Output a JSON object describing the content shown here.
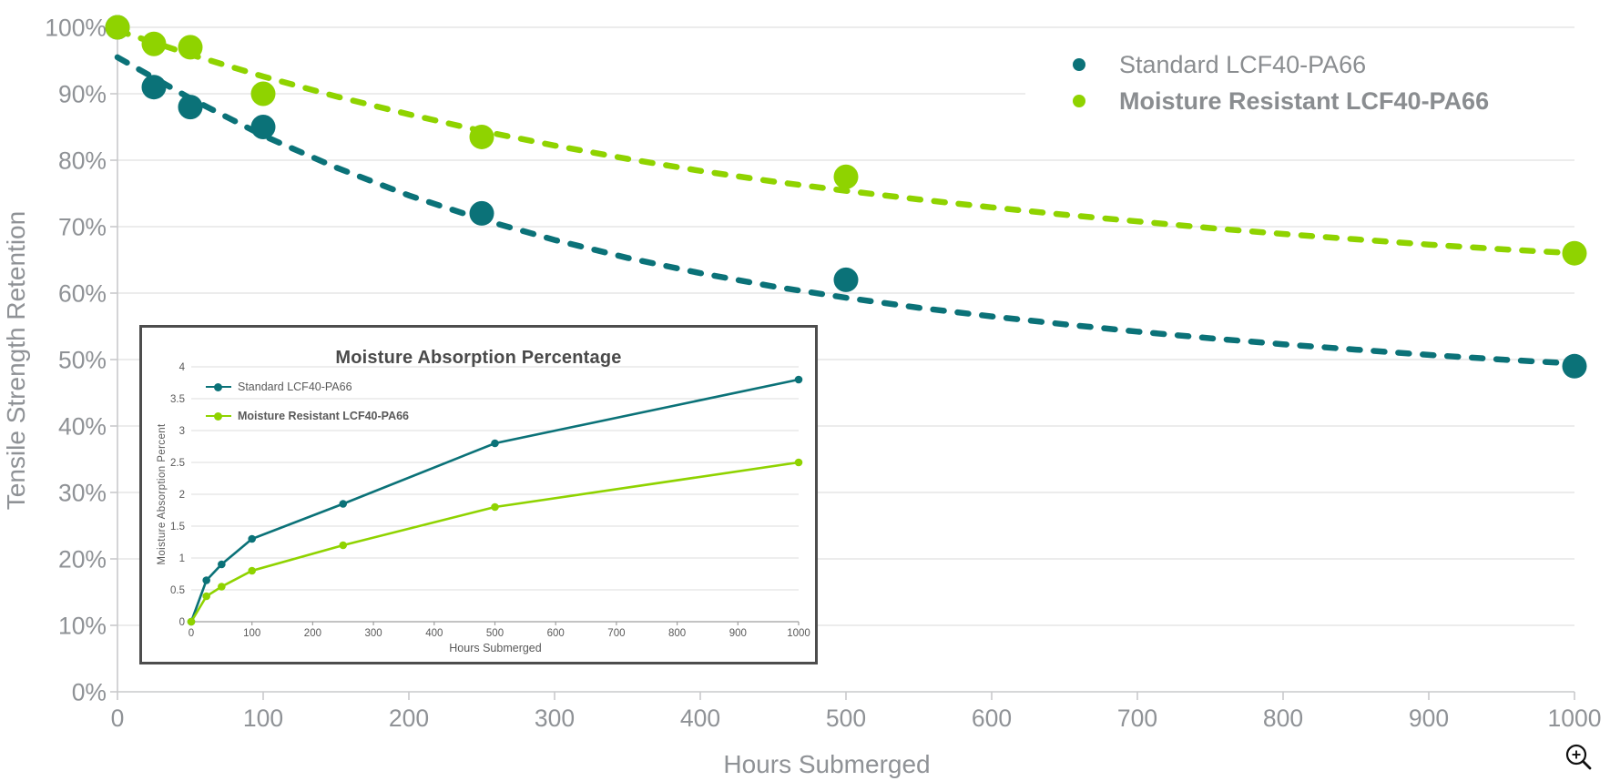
{
  "colors": {
    "standard": "#0b7278",
    "moisture_resistant": "#8fd300",
    "axis_text": "#8f9296",
    "grid": "#e6e6e6",
    "axis_line": "#c9cacb",
    "legend_text": "#8a8d90",
    "inset_text": "#595959",
    "inset_border": "#4d4d4d",
    "zoom_icon": "#111111"
  },
  "icons": {
    "zoom_in": "magnifier-plus-icon"
  },
  "chart_data": [
    {
      "id": "tensile-retention",
      "type": "scatter",
      "title": "",
      "xlabel": "Hours Submerged",
      "ylabel": "Tensile Strength Retention",
      "xlim": [
        0,
        1000
      ],
      "ylim": [
        0,
        100
      ],
      "xticks": [
        0,
        100,
        200,
        300,
        400,
        500,
        600,
        700,
        800,
        900,
        1000
      ],
      "yticks": [
        "0%",
        "10%",
        "20%",
        "30%",
        "40%",
        "50%",
        "60%",
        "70%",
        "80%",
        "90%",
        "100%"
      ],
      "grid": "horizontal",
      "legend_position": "top-right",
      "series": [
        {
          "name": "Standard LCF40-PA66",
          "color_key": "standard",
          "bold": false,
          "marker": "circle",
          "trend_style": "dashed",
          "points": [
            [
              0,
              100
            ],
            [
              25,
              91
            ],
            [
              50,
              88
            ],
            [
              100,
              85
            ],
            [
              250,
              72
            ],
            [
              500,
              62
            ],
            [
              1000,
              49
            ]
          ],
          "trend": [
            [
              0,
              95.5
            ],
            [
              50,
              89.3
            ],
            [
              100,
              83.7
            ],
            [
              150,
              78.9
            ],
            [
              200,
              74.7
            ],
            [
              250,
              71.1
            ],
            [
              300,
              68
            ],
            [
              350,
              65.3
            ],
            [
              400,
              63
            ],
            [
              450,
              61
            ],
            [
              500,
              59.3
            ],
            [
              550,
              57.8
            ],
            [
              600,
              56.5
            ],
            [
              650,
              55.3
            ],
            [
              700,
              54.2
            ],
            [
              750,
              53.2
            ],
            [
              800,
              52.3
            ],
            [
              850,
              51.5
            ],
            [
              900,
              50.7
            ],
            [
              950,
              50
            ],
            [
              1000,
              49.4
            ]
          ]
        },
        {
          "name": "Moisture Resistant LCF40-PA66",
          "color_key": "moisture_resistant",
          "bold": true,
          "marker": "circle",
          "trend_style": "dashed",
          "points": [
            [
              0,
              100
            ],
            [
              25,
              97.5
            ],
            [
              50,
              97
            ],
            [
              100,
              90
            ],
            [
              250,
              83.5
            ],
            [
              500,
              77.5
            ],
            [
              1000,
              66
            ]
          ],
          "trend": [
            [
              0,
              99.5
            ],
            [
              50,
              95.9
            ],
            [
              100,
              92.6
            ],
            [
              150,
              89.6
            ],
            [
              200,
              86.9
            ],
            [
              250,
              84.4
            ],
            [
              300,
              82.2
            ],
            [
              350,
              80.2
            ],
            [
              400,
              78.4
            ],
            [
              450,
              76.8
            ],
            [
              500,
              75.4
            ],
            [
              550,
              74.1
            ],
            [
              600,
              72.9
            ],
            [
              650,
              71.8
            ],
            [
              700,
              70.8
            ],
            [
              750,
              69.8
            ],
            [
              800,
              68.9
            ],
            [
              850,
              68.1
            ],
            [
              900,
              67.3
            ],
            [
              950,
              66.6
            ],
            [
              1000,
              66
            ]
          ]
        }
      ]
    },
    {
      "id": "moisture-absorption",
      "type": "line",
      "title": "Moisture Absorption Percentage",
      "xlabel": "Hours Submerged",
      "ylabel": "Moisture Absorption Percent",
      "xlim": [
        0,
        1000
      ],
      "ylim": [
        0,
        4
      ],
      "xticks": [
        0,
        100,
        200,
        300,
        400,
        500,
        600,
        700,
        800,
        900,
        1000
      ],
      "yticks": [
        "0",
        "0.5",
        "1",
        "1.5",
        "2",
        "2.5",
        "3",
        "3.5",
        "4"
      ],
      "grid": "horizontal",
      "legend_position": "top-left",
      "series": [
        {
          "name": "Standard LCF40-PA66",
          "color_key": "standard",
          "bold": false,
          "marker": "circle",
          "points": [
            [
              0,
              0
            ],
            [
              25,
              0.65
            ],
            [
              50,
              0.9
            ],
            [
              100,
              1.3
            ],
            [
              250,
              1.85
            ],
            [
              500,
              2.8
            ],
            [
              1000,
              3.8
            ]
          ]
        },
        {
          "name": "Moisture Resistant LCF40-PA66",
          "color_key": "moisture_resistant",
          "bold": true,
          "marker": "circle",
          "points": [
            [
              0,
              0
            ],
            [
              25,
              0.4
            ],
            [
              50,
              0.55
            ],
            [
              100,
              0.8
            ],
            [
              250,
              1.2
            ],
            [
              500,
              1.8
            ],
            [
              1000,
              2.5
            ]
          ]
        }
      ]
    }
  ]
}
